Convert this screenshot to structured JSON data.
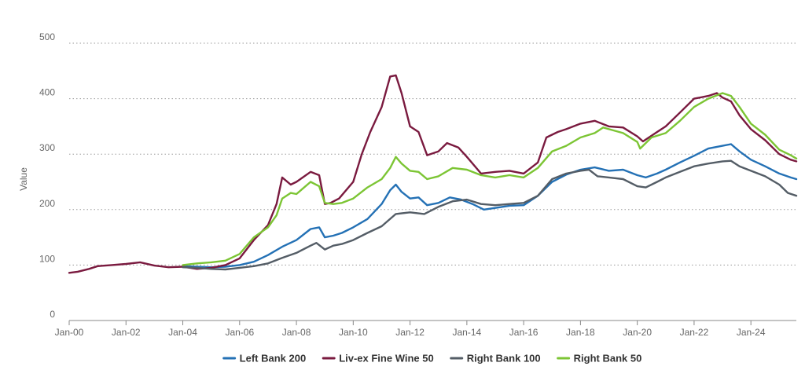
{
  "chart_data": {
    "type": "line",
    "title": "",
    "xlabel": "",
    "ylabel": "Value",
    "ylim": [
      0,
      500
    ],
    "yticks": [
      0,
      100,
      200,
      300,
      400,
      500
    ],
    "xlim": [
      2000.0,
      2025.6
    ],
    "xticks": [
      {
        "label": "Jan-00",
        "x": 2000
      },
      {
        "label": "Jan-02",
        "x": 2002
      },
      {
        "label": "Jan-04",
        "x": 2004
      },
      {
        "label": "Jan-06",
        "x": 2006
      },
      {
        "label": "Jan-08",
        "x": 2008
      },
      {
        "label": "Jan-10",
        "x": 2010
      },
      {
        "label": "Jan-12",
        "x": 2012
      },
      {
        "label": "Jan-14",
        "x": 2014
      },
      {
        "label": "Jan-16",
        "x": 2016
      },
      {
        "label": "Jan-18",
        "x": 2018
      },
      {
        "label": "Jan-20",
        "x": 2020
      },
      {
        "label": "Jan-22",
        "x": 2022
      },
      {
        "label": "Jan-24",
        "x": 2024
      }
    ],
    "grid": true,
    "legend_position": "bottom-center",
    "series": [
      {
        "name": "Left Bank 200",
        "color": "#2471b5",
        "points": [
          [
            2004.0,
            98
          ],
          [
            2004.5,
            97
          ],
          [
            2005.0,
            96
          ],
          [
            2005.5,
            97
          ],
          [
            2006.0,
            100
          ],
          [
            2006.5,
            106
          ],
          [
            2007.0,
            118
          ],
          [
            2007.5,
            133
          ],
          [
            2008.0,
            145
          ],
          [
            2008.5,
            165
          ],
          [
            2008.8,
            168
          ],
          [
            2009.0,
            150
          ],
          [
            2009.3,
            153
          ],
          [
            2009.6,
            158
          ],
          [
            2010.0,
            168
          ],
          [
            2010.5,
            183
          ],
          [
            2011.0,
            210
          ],
          [
            2011.3,
            235
          ],
          [
            2011.5,
            245
          ],
          [
            2011.7,
            232
          ],
          [
            2012.0,
            220
          ],
          [
            2012.3,
            222
          ],
          [
            2012.6,
            208
          ],
          [
            2013.0,
            212
          ],
          [
            2013.4,
            222
          ],
          [
            2013.8,
            218
          ],
          [
            2014.2,
            210
          ],
          [
            2014.6,
            200
          ],
          [
            2015.0,
            203
          ],
          [
            2015.5,
            207
          ],
          [
            2016.0,
            208
          ],
          [
            2016.5,
            225
          ],
          [
            2017.0,
            250
          ],
          [
            2017.5,
            263
          ],
          [
            2018.0,
            272
          ],
          [
            2018.5,
            276
          ],
          [
            2019.0,
            270
          ],
          [
            2019.5,
            272
          ],
          [
            2020.0,
            262
          ],
          [
            2020.3,
            258
          ],
          [
            2020.7,
            265
          ],
          [
            2021.0,
            272
          ],
          [
            2021.5,
            285
          ],
          [
            2022.0,
            297
          ],
          [
            2022.5,
            310
          ],
          [
            2023.0,
            315
          ],
          [
            2023.3,
            318
          ],
          [
            2023.6,
            305
          ],
          [
            2024.0,
            290
          ],
          [
            2024.5,
            278
          ],
          [
            2025.0,
            265
          ],
          [
            2025.4,
            258
          ],
          [
            2025.6,
            255
          ]
        ]
      },
      {
        "name": "Liv-ex Fine Wine 50",
        "color": "#7a1a3f",
        "points": [
          [
            2000.0,
            86
          ],
          [
            2000.3,
            88
          ],
          [
            2000.7,
            93
          ],
          [
            2001.0,
            98
          ],
          [
            2001.5,
            100
          ],
          [
            2002.0,
            102
          ],
          [
            2002.5,
            105
          ],
          [
            2003.0,
            99
          ],
          [
            2003.5,
            96
          ],
          [
            2004.0,
            97
          ],
          [
            2004.5,
            93
          ],
          [
            2005.0,
            95
          ],
          [
            2005.5,
            100
          ],
          [
            2006.0,
            112
          ],
          [
            2006.5,
            145
          ],
          [
            2007.0,
            172
          ],
          [
            2007.3,
            210
          ],
          [
            2007.5,
            258
          ],
          [
            2007.8,
            245
          ],
          [
            2008.0,
            250
          ],
          [
            2008.5,
            268
          ],
          [
            2008.8,
            262
          ],
          [
            2009.0,
            210
          ],
          [
            2009.2,
            212
          ],
          [
            2009.5,
            220
          ],
          [
            2010.0,
            250
          ],
          [
            2010.3,
            300
          ],
          [
            2010.6,
            340
          ],
          [
            2011.0,
            385
          ],
          [
            2011.3,
            440
          ],
          [
            2011.5,
            442
          ],
          [
            2011.7,
            410
          ],
          [
            2012.0,
            350
          ],
          [
            2012.3,
            340
          ],
          [
            2012.6,
            298
          ],
          [
            2013.0,
            305
          ],
          [
            2013.3,
            320
          ],
          [
            2013.7,
            312
          ],
          [
            2014.0,
            295
          ],
          [
            2014.5,
            265
          ],
          [
            2015.0,
            268
          ],
          [
            2015.5,
            270
          ],
          [
            2016.0,
            265
          ],
          [
            2016.5,
            285
          ],
          [
            2016.8,
            330
          ],
          [
            2017.2,
            340
          ],
          [
            2017.5,
            345
          ],
          [
            2018.0,
            355
          ],
          [
            2018.5,
            360
          ],
          [
            2019.0,
            350
          ],
          [
            2019.5,
            348
          ],
          [
            2020.0,
            332
          ],
          [
            2020.2,
            323
          ],
          [
            2020.7,
            340
          ],
          [
            2021.0,
            350
          ],
          [
            2021.5,
            375
          ],
          [
            2022.0,
            400
          ],
          [
            2022.5,
            405
          ],
          [
            2022.8,
            410
          ],
          [
            2023.0,
            402
          ],
          [
            2023.3,
            395
          ],
          [
            2023.6,
            370
          ],
          [
            2024.0,
            345
          ],
          [
            2024.5,
            325
          ],
          [
            2025.0,
            300
          ],
          [
            2025.4,
            290
          ],
          [
            2025.6,
            287
          ]
        ]
      },
      {
        "name": "Right Bank 100",
        "color": "#545d66",
        "points": [
          [
            2004.0,
            96
          ],
          [
            2004.5,
            95
          ],
          [
            2005.0,
            93
          ],
          [
            2005.5,
            92
          ],
          [
            2006.0,
            95
          ],
          [
            2006.5,
            98
          ],
          [
            2007.0,
            103
          ],
          [
            2007.5,
            113
          ],
          [
            2008.0,
            122
          ],
          [
            2008.5,
            135
          ],
          [
            2008.7,
            140
          ],
          [
            2009.0,
            128
          ],
          [
            2009.3,
            135
          ],
          [
            2009.6,
            138
          ],
          [
            2010.0,
            145
          ],
          [
            2010.5,
            158
          ],
          [
            2011.0,
            170
          ],
          [
            2011.5,
            192
          ],
          [
            2012.0,
            195
          ],
          [
            2012.5,
            192
          ],
          [
            2013.0,
            205
          ],
          [
            2013.5,
            215
          ],
          [
            2014.0,
            218
          ],
          [
            2014.5,
            210
          ],
          [
            2015.0,
            208
          ],
          [
            2015.5,
            210
          ],
          [
            2016.0,
            212
          ],
          [
            2016.5,
            225
          ],
          [
            2017.0,
            255
          ],
          [
            2017.5,
            265
          ],
          [
            2018.0,
            270
          ],
          [
            2018.3,
            272
          ],
          [
            2018.6,
            260
          ],
          [
            2019.0,
            258
          ],
          [
            2019.5,
            255
          ],
          [
            2020.0,
            242
          ],
          [
            2020.3,
            240
          ],
          [
            2020.7,
            250
          ],
          [
            2021.0,
            258
          ],
          [
            2021.5,
            268
          ],
          [
            2022.0,
            278
          ],
          [
            2022.5,
            283
          ],
          [
            2023.0,
            287
          ],
          [
            2023.3,
            288
          ],
          [
            2023.6,
            278
          ],
          [
            2024.0,
            270
          ],
          [
            2024.5,
            260
          ],
          [
            2025.0,
            245
          ],
          [
            2025.3,
            230
          ],
          [
            2025.6,
            225
          ]
        ]
      },
      {
        "name": "Right Bank 50",
        "color": "#7cc534",
        "points": [
          [
            2004.0,
            100
          ],
          [
            2004.5,
            103
          ],
          [
            2005.0,
            105
          ],
          [
            2005.5,
            108
          ],
          [
            2006.0,
            120
          ],
          [
            2006.5,
            150
          ],
          [
            2007.0,
            168
          ],
          [
            2007.3,
            190
          ],
          [
            2007.5,
            220
          ],
          [
            2007.8,
            230
          ],
          [
            2008.0,
            228
          ],
          [
            2008.5,
            250
          ],
          [
            2008.8,
            242
          ],
          [
            2009.0,
            212
          ],
          [
            2009.3,
            210
          ],
          [
            2009.6,
            212
          ],
          [
            2010.0,
            220
          ],
          [
            2010.5,
            240
          ],
          [
            2011.0,
            255
          ],
          [
            2011.3,
            275
          ],
          [
            2011.5,
            295
          ],
          [
            2011.7,
            283
          ],
          [
            2012.0,
            270
          ],
          [
            2012.3,
            268
          ],
          [
            2012.6,
            255
          ],
          [
            2013.0,
            260
          ],
          [
            2013.5,
            275
          ],
          [
            2014.0,
            272
          ],
          [
            2014.5,
            262
          ],
          [
            2015.0,
            258
          ],
          [
            2015.5,
            262
          ],
          [
            2016.0,
            258
          ],
          [
            2016.5,
            275
          ],
          [
            2017.0,
            305
          ],
          [
            2017.5,
            315
          ],
          [
            2018.0,
            330
          ],
          [
            2018.5,
            338
          ],
          [
            2018.8,
            348
          ],
          [
            2019.0,
            345
          ],
          [
            2019.5,
            338
          ],
          [
            2020.0,
            322
          ],
          [
            2020.1,
            310
          ],
          [
            2020.5,
            330
          ],
          [
            2021.0,
            338
          ],
          [
            2021.5,
            360
          ],
          [
            2022.0,
            385
          ],
          [
            2022.5,
            400
          ],
          [
            2023.0,
            410
          ],
          [
            2023.3,
            405
          ],
          [
            2023.6,
            385
          ],
          [
            2024.0,
            355
          ],
          [
            2024.5,
            335
          ],
          [
            2025.0,
            308
          ],
          [
            2025.4,
            298
          ],
          [
            2025.6,
            292
          ]
        ]
      }
    ]
  }
}
